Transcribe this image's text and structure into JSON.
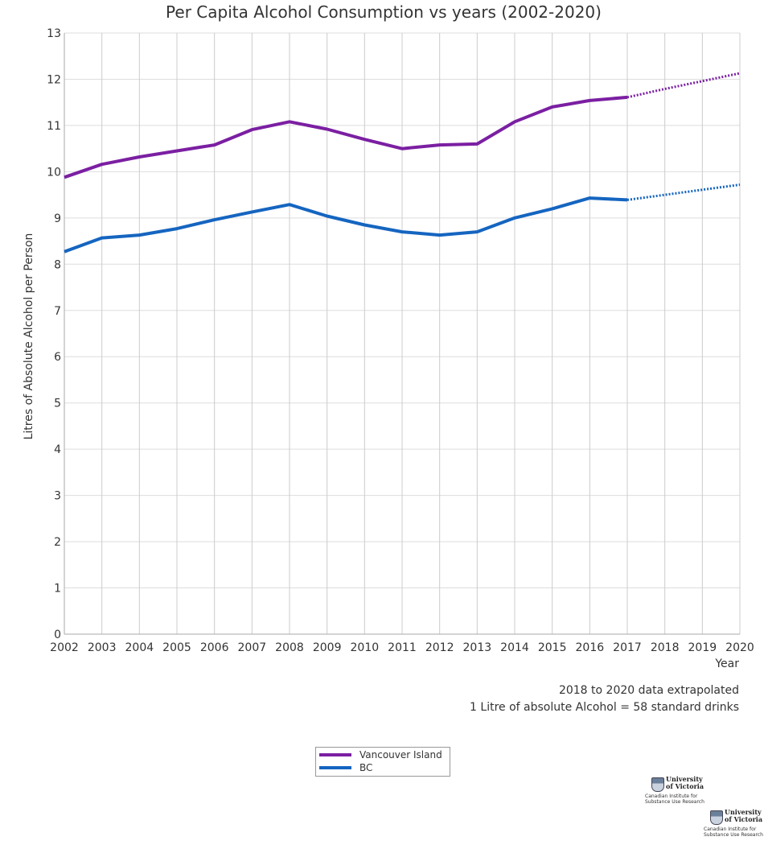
{
  "chart_data": {
    "type": "line",
    "title": "Per Capita Alcohol Consumption vs years (2002-2020)",
    "xlabel": "Year",
    "ylabel": "Litres of Absolute Alcohol per Person",
    "x": [
      2002,
      2003,
      2004,
      2005,
      2006,
      2007,
      2008,
      2009,
      2010,
      2011,
      2012,
      2013,
      2014,
      2015,
      2016,
      2017,
      2018,
      2019,
      2020
    ],
    "xlim": [
      2002,
      2020
    ],
    "ylim": [
      0,
      13
    ],
    "yticks": [
      0,
      1,
      2,
      3,
      4,
      5,
      6,
      7,
      8,
      9,
      10,
      11,
      12,
      13
    ],
    "grid": true,
    "extrapolated_from": 2017,
    "series": [
      {
        "name": "Vancouver Island",
        "color": "#7b1fa2",
        "values": [
          9.88,
          10.16,
          10.32,
          10.45,
          10.58,
          10.91,
          11.08,
          10.92,
          10.7,
          10.5,
          10.58,
          10.6,
          11.08,
          11.4,
          11.54,
          11.61,
          11.79,
          11.96,
          12.13
        ]
      },
      {
        "name": "BC",
        "color": "#1565c0",
        "values": [
          8.27,
          8.57,
          8.63,
          8.77,
          8.96,
          9.13,
          9.29,
          9.04,
          8.85,
          8.7,
          8.63,
          8.7,
          9.0,
          9.2,
          9.43,
          9.39,
          9.5,
          9.61,
          9.72
        ]
      }
    ],
    "legend_position": "bottom-center",
    "notes": [
      "2018 to 2020 data extrapolated",
      "1 Litre of absolute Alcohol = 58 standard drinks"
    ]
  },
  "logos": [
    {
      "university": [
        "University",
        "of Victoria"
      ],
      "institute": [
        "Canadian Institute for",
        "Substance Use Research"
      ]
    },
    {
      "university": [
        "University",
        "of Victoria"
      ],
      "institute": [
        "Canadian Institute for",
        "Substance Use Research"
      ]
    }
  ]
}
